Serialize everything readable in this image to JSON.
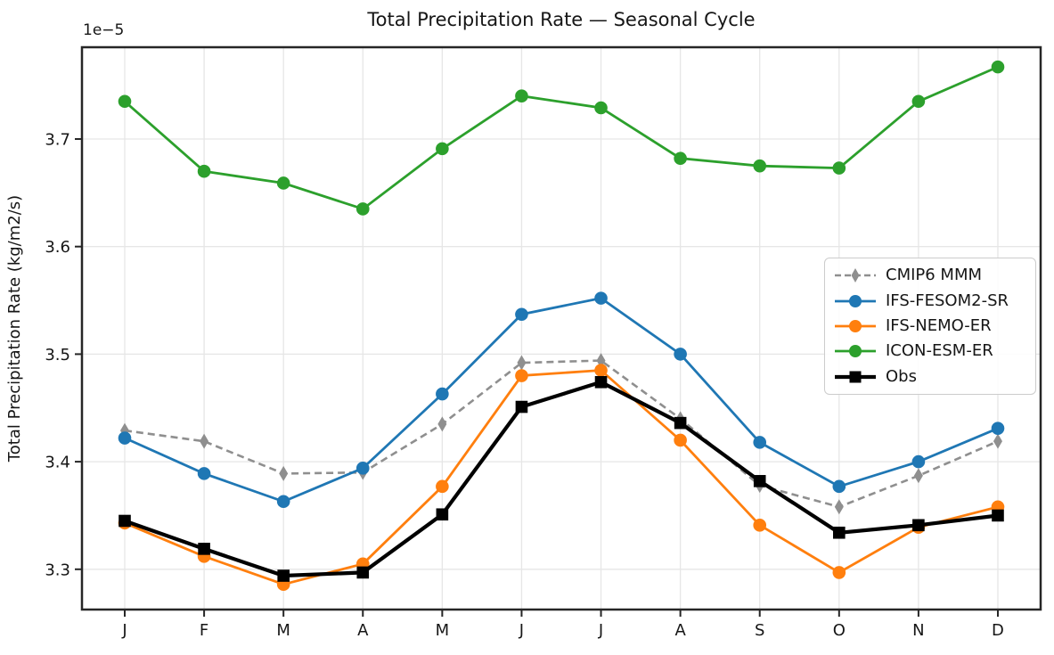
{
  "chart_data": {
    "type": "line",
    "title": "Total Precipitation Rate — Seasonal Cycle",
    "xlabel": "",
    "ylabel": "Total Precipitation Rate (kg/m2/s)",
    "y_offset_label": "1e−5",
    "y_unit_multiplier": "1e-5",
    "categories": [
      "J",
      "F",
      "M",
      "A",
      "M",
      "J",
      "J",
      "A",
      "S",
      "O",
      "N",
      "D"
    ],
    "ytick_labels": [
      "3.3",
      "3.4",
      "3.5",
      "3.6",
      "3.7"
    ],
    "ytick_values": [
      3.3,
      3.4,
      3.5,
      3.6,
      3.7
    ],
    "ylim": [
      3.264,
      3.786
    ],
    "grid": true,
    "legend": {
      "position": "center-right"
    },
    "series": [
      {
        "name": "CMIP6 MMM",
        "color": "#8f8f8f",
        "line_style": "dashed",
        "marker": "thin-diamond",
        "line_width": 2.6,
        "values": [
          3.429,
          3.419,
          3.389,
          3.39,
          3.435,
          3.492,
          3.494,
          3.44,
          3.378,
          3.358,
          3.387,
          3.419
        ]
      },
      {
        "name": "IFS-FESOM2-SR",
        "color": "#1f77b4",
        "line_style": "solid",
        "marker": "circle",
        "line_width": 2.8,
        "values": [
          3.422,
          3.389,
          3.363,
          3.394,
          3.463,
          3.537,
          3.552,
          3.5,
          3.418,
          3.377,
          3.4,
          3.431
        ]
      },
      {
        "name": "IFS-NEMO-ER",
        "color": "#ff7f0e",
        "line_style": "solid",
        "marker": "circle",
        "line_width": 2.8,
        "values": [
          3.343,
          3.312,
          3.286,
          3.305,
          3.377,
          3.48,
          3.485,
          3.42,
          3.341,
          3.297,
          3.339,
          3.358
        ]
      },
      {
        "name": "ICON-ESM-ER",
        "color": "#2ca02c",
        "line_style": "solid",
        "marker": "circle",
        "line_width": 2.8,
        "values": [
          3.735,
          3.67,
          3.659,
          3.635,
          3.691,
          3.74,
          3.729,
          3.682,
          3.675,
          3.673,
          3.735,
          3.767
        ]
      },
      {
        "name": "Obs",
        "color": "#000000",
        "line_style": "solid",
        "marker": "square",
        "line_width": 4.2,
        "values": [
          3.345,
          3.319,
          3.294,
          3.297,
          3.351,
          3.451,
          3.474,
          3.436,
          3.382,
          3.334,
          3.341,
          3.35
        ]
      }
    ],
    "style": {
      "grid_color": "#e6e6e6",
      "spine_color": "#262626",
      "text_color": "#161616",
      "legend_border_color": "#cccccc"
    }
  }
}
